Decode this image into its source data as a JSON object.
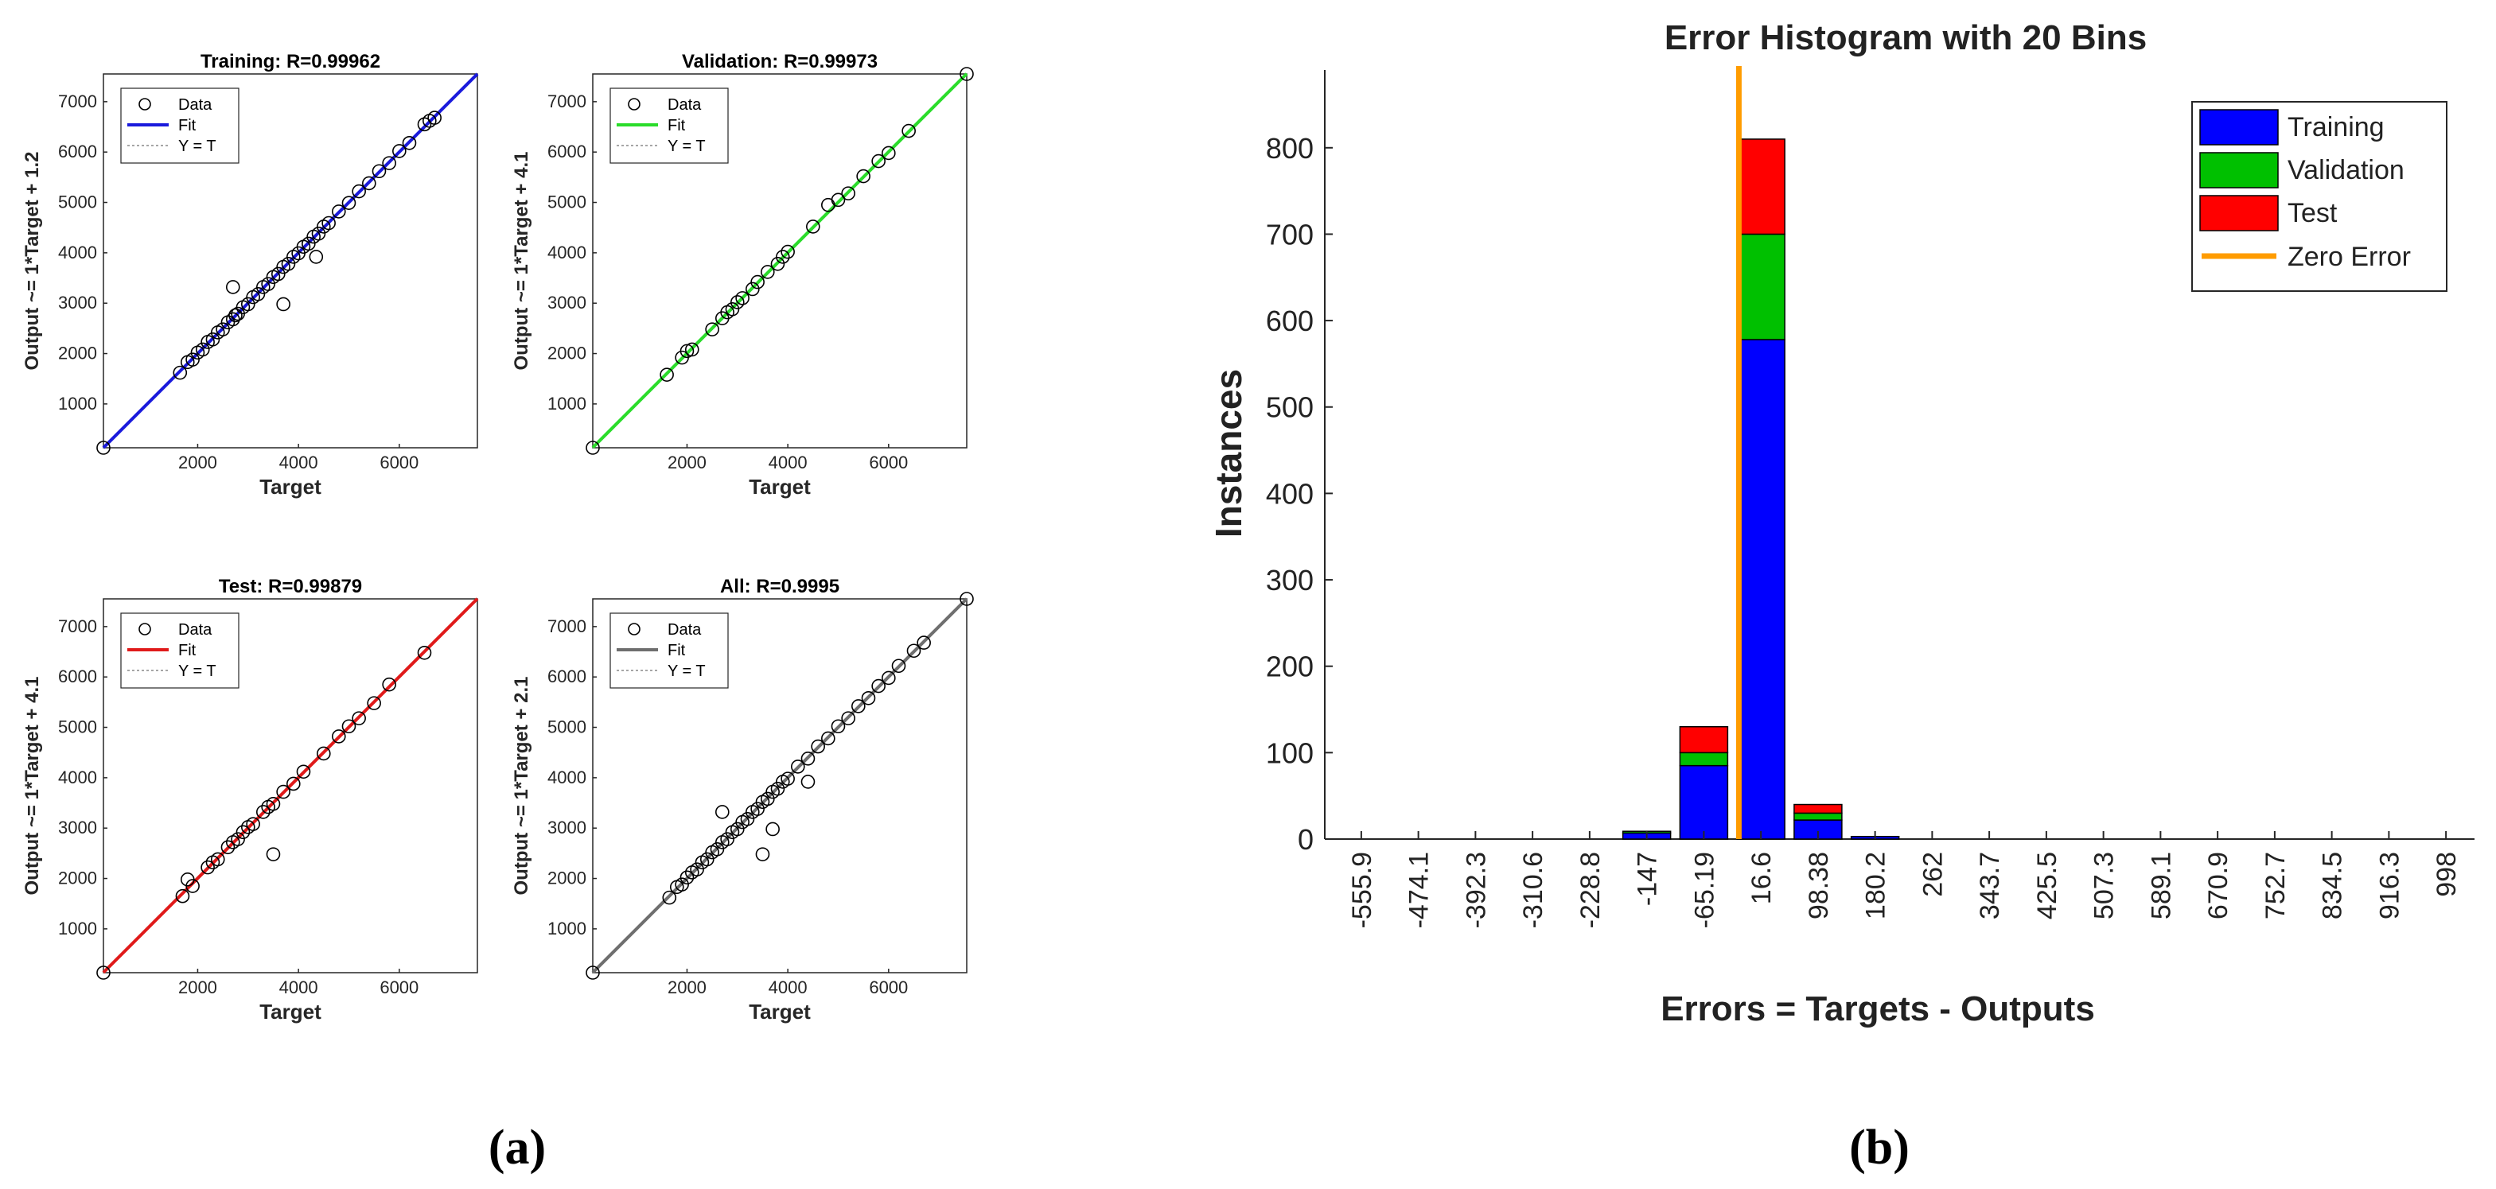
{
  "panel_labels": [
    "(a)",
    "(b)"
  ],
  "chart_data": [
    {
      "type": "scatter",
      "panel": "a",
      "title": "Training: R=0.99962",
      "xlabel": "Target",
      "ylabel": "Output ~= 1*Target + 1.2",
      "xlim": [
        130,
        7550
      ],
      "ylim": [
        130,
        7550
      ],
      "xticks": [
        2000,
        4000,
        6000
      ],
      "yticks": [
        1000,
        2000,
        3000,
        4000,
        5000,
        6000,
        7000
      ],
      "grid": false,
      "legend_position": "top-left",
      "fit": {
        "slope": 1,
        "intercept": 1.2,
        "color": "#1a1adc"
      },
      "series": [
        {
          "name": "Data"
        },
        {
          "name": "Fit"
        },
        {
          "name": "Y = T"
        }
      ],
      "x": [
        130,
        1650,
        1800,
        1900,
        2000,
        2100,
        2200,
        2300,
        2400,
        2500,
        2600,
        2700,
        2750,
        2800,
        2900,
        3000,
        3100,
        3200,
        3300,
        3400,
        3500,
        3600,
        3700,
        3800,
        3900,
        4000,
        4100,
        4200,
        4300,
        4400,
        4500,
        4600,
        4800,
        5000,
        5200,
        5400,
        5600,
        5800,
        6000,
        6200,
        6500,
        6600,
        6700,
        2700,
        3700,
        4350
      ],
      "y": [
        130,
        1620,
        1830,
        1880,
        2020,
        2080,
        2230,
        2280,
        2420,
        2480,
        2620,
        2680,
        2760,
        2790,
        2920,
        2980,
        3120,
        3180,
        3320,
        3380,
        3520,
        3580,
        3720,
        3780,
        3920,
        3990,
        4120,
        4180,
        4320,
        4380,
        4520,
        4590,
        4820,
        4990,
        5220,
        5380,
        5620,
        5780,
        6020,
        6180,
        6550,
        6620,
        6680,
        3320,
        2980,
        3920
      ]
    },
    {
      "type": "scatter",
      "panel": "a",
      "title": "Validation: R=0.99973",
      "xlabel": "Target",
      "ylabel": "Output ~= 1*Target + 4.1",
      "xlim": [
        130,
        7550
      ],
      "ylim": [
        130,
        7550
      ],
      "xticks": [
        2000,
        4000,
        6000
      ],
      "yticks": [
        1000,
        2000,
        3000,
        4000,
        5000,
        6000,
        7000
      ],
      "grid": false,
      "legend_position": "top-left",
      "fit": {
        "slope": 1,
        "intercept": 4.1,
        "color": "#2adc2a"
      },
      "series": [
        {
          "name": "Data"
        },
        {
          "name": "Fit"
        },
        {
          "name": "Y = T"
        }
      ],
      "x": [
        130,
        1600,
        1900,
        2000,
        2100,
        2500,
        2700,
        2800,
        2900,
        3000,
        3100,
        3300,
        3400,
        3600,
        3800,
        3900,
        4000,
        4500,
        4800,
        5000,
        5200,
        5500,
        5800,
        6000,
        6400,
        7550
      ],
      "y": [
        130,
        1580,
        1920,
        2050,
        2080,
        2480,
        2700,
        2820,
        2880,
        3020,
        3100,
        3280,
        3420,
        3620,
        3780,
        3920,
        4020,
        4520,
        4950,
        5050,
        5180,
        5520,
        5820,
        5980,
        6420,
        7550
      ]
    },
    {
      "type": "scatter",
      "panel": "a",
      "title": "Test: R=0.99879",
      "xlabel": "Target",
      "ylabel": "Output ~= 1*Target + 4.1",
      "xlim": [
        130,
        7550
      ],
      "ylim": [
        130,
        7550
      ],
      "xticks": [
        2000,
        4000,
        6000
      ],
      "yticks": [
        1000,
        2000,
        3000,
        4000,
        5000,
        6000,
        7000
      ],
      "grid": false,
      "legend_position": "top-left",
      "fit": {
        "slope": 1,
        "intercept": 4.1,
        "color": "#e01a1a"
      },
      "series": [
        {
          "name": "Data"
        },
        {
          "name": "Fit"
        },
        {
          "name": "Y = T"
        }
      ],
      "x": [
        130,
        1700,
        1800,
        1900,
        2200,
        2300,
        2400,
        2600,
        2700,
        2800,
        2900,
        3000,
        3100,
        3300,
        3400,
        3500,
        3700,
        3900,
        4100,
        4500,
        4800,
        5000,
        5200,
        5500,
        5800,
        6500,
        3500
      ],
      "y": [
        130,
        1650,
        1980,
        1850,
        2220,
        2320,
        2380,
        2620,
        2720,
        2780,
        2920,
        3020,
        3080,
        3320,
        3420,
        3480,
        3720,
        3880,
        4120,
        4480,
        4820,
        5020,
        5180,
        5480,
        5850,
        6480,
        2480
      ]
    },
    {
      "type": "scatter",
      "panel": "a",
      "title": "All: R=0.9995",
      "xlabel": "Target",
      "ylabel": "Output ~= 1*Target + 2.1",
      "xlim": [
        130,
        7550
      ],
      "ylim": [
        130,
        7550
      ],
      "xticks": [
        2000,
        4000,
        6000
      ],
      "yticks": [
        1000,
        2000,
        3000,
        4000,
        5000,
        6000,
        7000
      ],
      "grid": false,
      "legend_position": "top-left",
      "fit": {
        "slope": 1,
        "intercept": 2.1,
        "color": "#6e6e6e"
      },
      "series": [
        {
          "name": "Data"
        },
        {
          "name": "Fit"
        },
        {
          "name": "Y = T"
        }
      ],
      "x": [
        130,
        1650,
        1800,
        1900,
        2000,
        2100,
        2200,
        2300,
        2400,
        2500,
        2600,
        2700,
        2800,
        2900,
        3000,
        3100,
        3200,
        3300,
        3400,
        3500,
        3600,
        3700,
        3800,
        3900,
        4000,
        4200,
        4400,
        4600,
        4800,
        5000,
        5200,
        5400,
        5600,
        5800,
        6000,
        6200,
        6500,
        6700,
        7550,
        2700,
        3500,
        3700,
        4400
      ],
      "y": [
        130,
        1620,
        1830,
        1880,
        2020,
        2120,
        2180,
        2320,
        2380,
        2520,
        2580,
        2720,
        2780,
        2920,
        2980,
        3120,
        3180,
        3320,
        3380,
        3520,
        3580,
        3720,
        3780,
        3920,
        3980,
        4220,
        4380,
        4620,
        4780,
        5020,
        5180,
        5420,
        5580,
        5820,
        5980,
        6220,
        6520,
        6680,
        7550,
        3320,
        2480,
        2980,
        3920
      ]
    },
    {
      "type": "bar",
      "panel": "b",
      "stacked": true,
      "title": "Error Histogram with 20 Bins",
      "xlabel": "Errors = Targets - Outputs",
      "ylabel": "Instances",
      "categories": [
        "-555.9",
        "-474.1",
        "-392.3",
        "-310.6",
        "-228.8",
        "-147",
        "-65.19",
        "16.6",
        "98.38",
        "180.2",
        "262",
        "343.7",
        "425.5",
        "507.3",
        "589.1",
        "670.9",
        "752.7",
        "834.5",
        "916.3",
        "998"
      ],
      "ylim": [
        0,
        890
      ],
      "yticks": [
        0,
        100,
        200,
        300,
        400,
        500,
        600,
        700,
        800
      ],
      "grid": false,
      "legend_position": "top-right",
      "zero_error_x": -15,
      "series": [
        {
          "name": "Training",
          "color": "#0000ff",
          "values": [
            0,
            0,
            0,
            0,
            0,
            7,
            85,
            578,
            22,
            3,
            0,
            0,
            0,
            0,
            0,
            0,
            0,
            0,
            0,
            0
          ]
        },
        {
          "name": "Validation",
          "color": "#00c000",
          "values": [
            0,
            0,
            0,
            0,
            0,
            2,
            15,
            122,
            8,
            0,
            0,
            0,
            0,
            0,
            0,
            0,
            0,
            0,
            0,
            0
          ]
        },
        {
          "name": "Test",
          "color": "#ff0000",
          "values": [
            0,
            0,
            0,
            0,
            0,
            0,
            30,
            110,
            10,
            0,
            0,
            0,
            0,
            0,
            0,
            0,
            0,
            0,
            0,
            0
          ]
        }
      ],
      "reference_line": {
        "name": "Zero Error",
        "color": "#ff9c00"
      }
    }
  ]
}
